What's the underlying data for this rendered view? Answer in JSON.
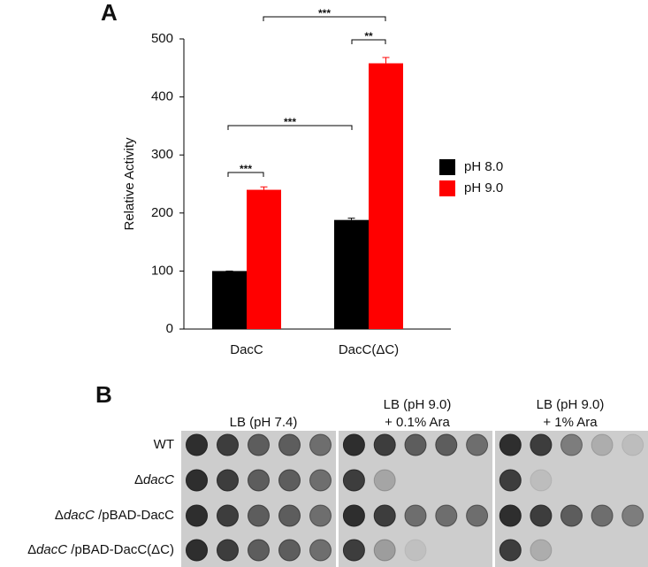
{
  "chart_data": {
    "type": "bar",
    "panel_label": "A",
    "y_label": "Relative Activity",
    "categories": [
      "DacC",
      "DacC(ΔC)"
    ],
    "series": [
      {
        "name": "pH 8.0",
        "color": "#000000",
        "values": [
          100,
          188
        ],
        "errors": [
          0,
          3
        ]
      },
      {
        "name": "pH 9.0",
        "color": "#ff0000",
        "values": [
          240,
          458
        ],
        "errors": [
          5,
          10
        ]
      }
    ],
    "ylim": [
      0,
      500
    ],
    "yticks": [
      0,
      100,
      200,
      300,
      400,
      500
    ],
    "annotations": [
      {
        "text": "***"
      },
      {
        "text": "***"
      },
      {
        "text": "**"
      },
      {
        "text": "***"
      }
    ]
  },
  "panel_b": {
    "label": "B",
    "columns": [
      {
        "lines": [
          "LB (pH 7.4)"
        ]
      },
      {
        "lines": [
          "LB (pH 9.0)",
          "+ 0.1% Ara"
        ]
      },
      {
        "lines": [
          "LB (pH 9.0)",
          "+ 1% Ara"
        ]
      }
    ],
    "rows": [
      {
        "parts": [
          {
            "text": "WT"
          }
        ]
      },
      {
        "parts": [
          {
            "text": "Δ"
          },
          {
            "text": "dacC",
            "italic": true
          }
        ]
      },
      {
        "parts": [
          {
            "text": "Δ"
          },
          {
            "text": "dacC",
            "italic": true
          },
          {
            "text": " /pBAD-DacC"
          }
        ]
      },
      {
        "parts": [
          {
            "text": "Δ"
          },
          {
            "text": "dacC",
            "italic": true
          },
          {
            "text": " /pBAD-DacC(ΔC)"
          }
        ]
      }
    ]
  }
}
